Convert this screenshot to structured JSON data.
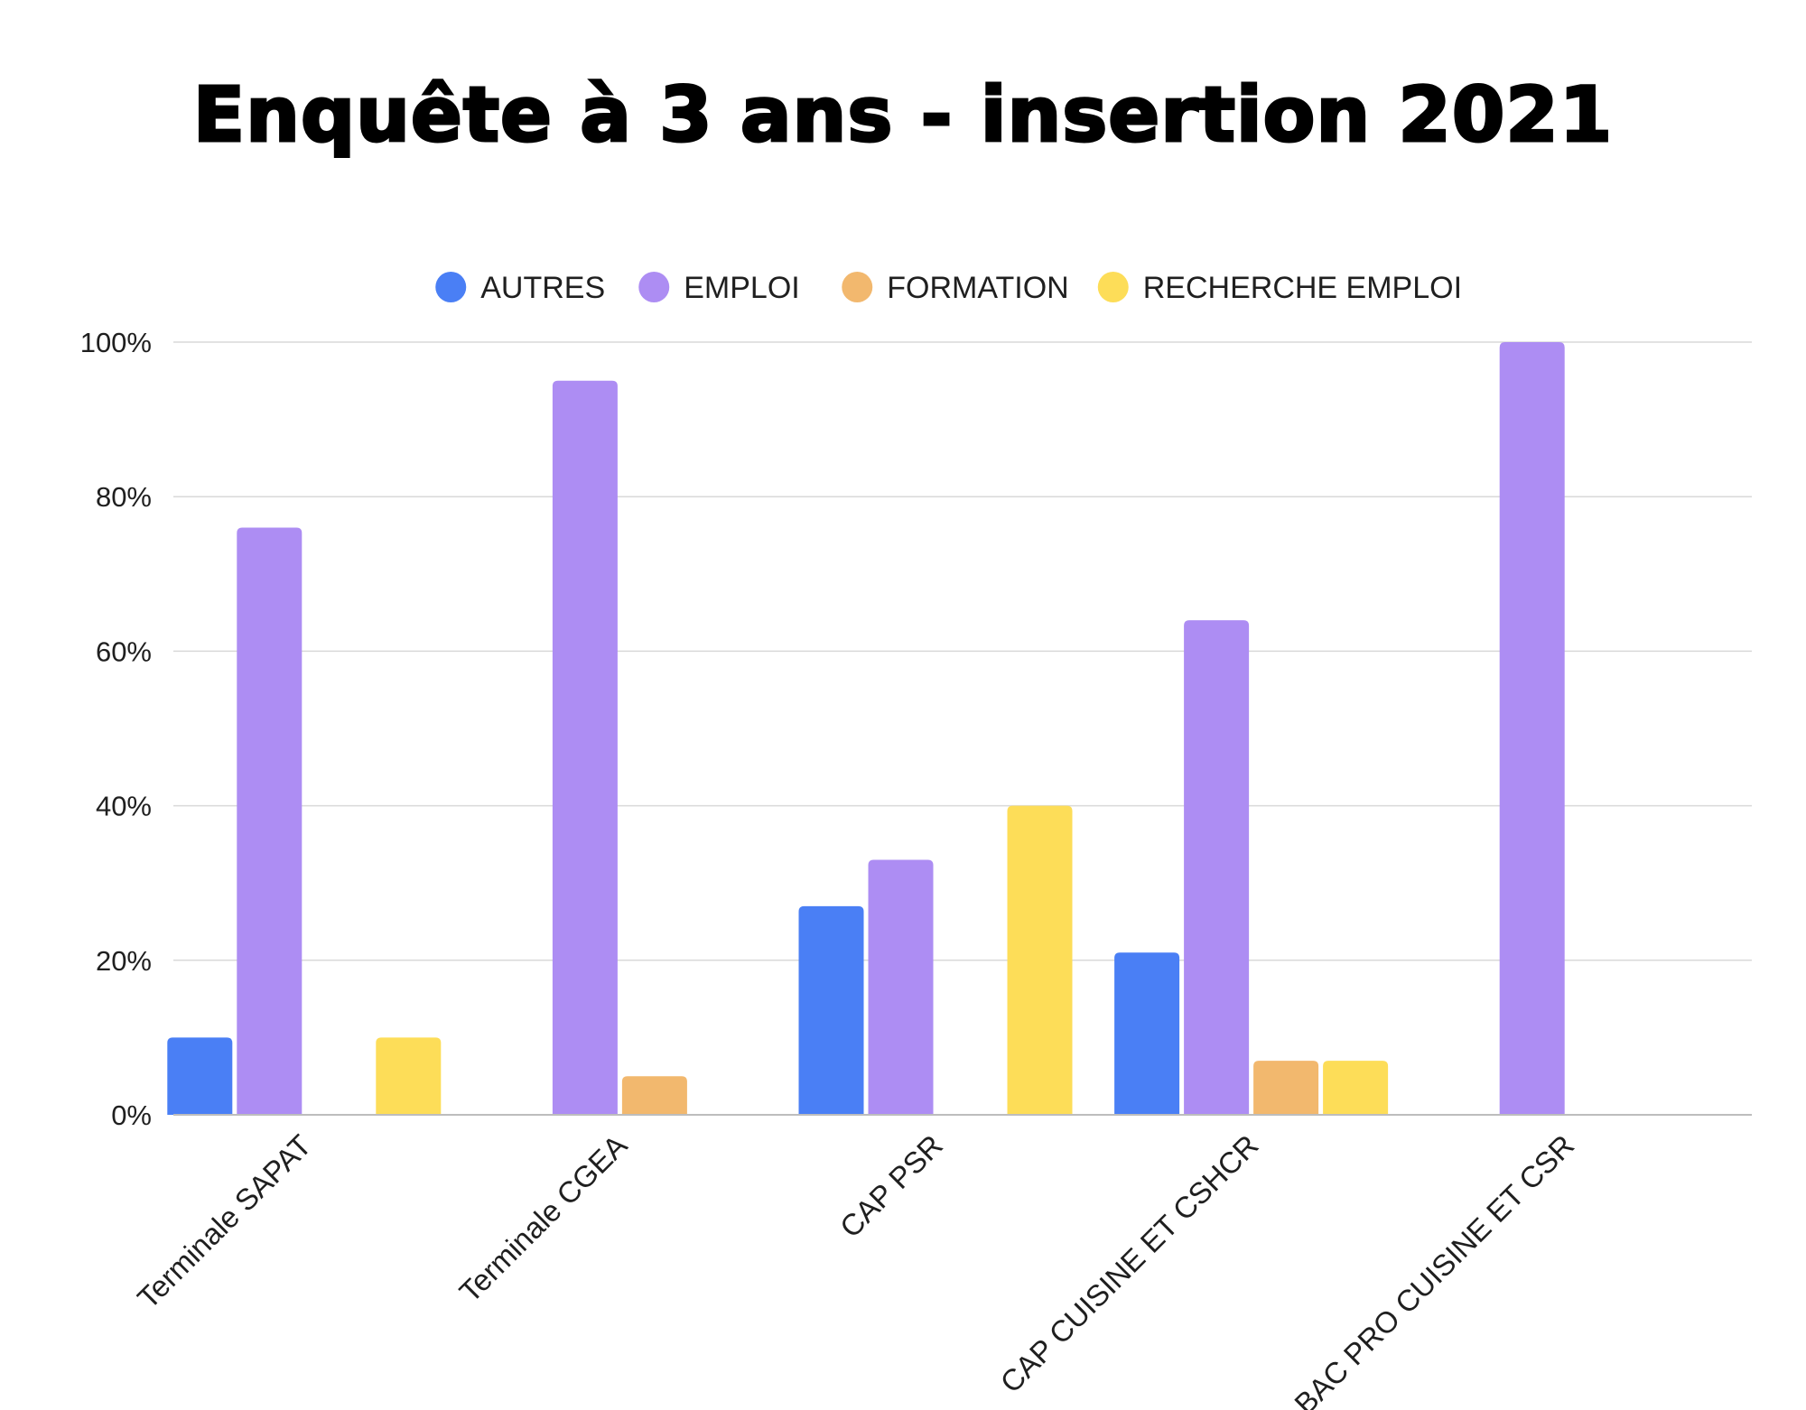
{
  "chart_data": {
    "type": "bar",
    "title": "Enquête à 3 ans - insertion 2021",
    "xlabel": "",
    "ylabel": "",
    "ylim": [
      0,
      100
    ],
    "yticks": [
      0,
      20,
      40,
      60,
      80,
      100
    ],
    "ytick_suffix": "%",
    "grid": true,
    "legend_position": "top-center",
    "categories": [
      "Terminale SAPAT",
      "Terminale CGEA",
      "CAP PSR",
      "CAP CUISINE ET CSHCR",
      "BAC PRO CUISINE ET CSR"
    ],
    "series": [
      {
        "name": "AUTRES",
        "color": "#4a7ff5",
        "values": [
          10,
          0,
          27,
          21,
          0
        ]
      },
      {
        "name": "EMPLOI",
        "color": "#ad8df3",
        "values": [
          76,
          95,
          33,
          64,
          100
        ]
      },
      {
        "name": "FORMATION",
        "color": "#f2b86e",
        "values": [
          0,
          5,
          0,
          7,
          0
        ]
      },
      {
        "name": "RECHERCHE EMPLOI",
        "color": "#fddd58",
        "values": [
          10,
          0,
          40,
          7,
          0
        ]
      }
    ]
  }
}
